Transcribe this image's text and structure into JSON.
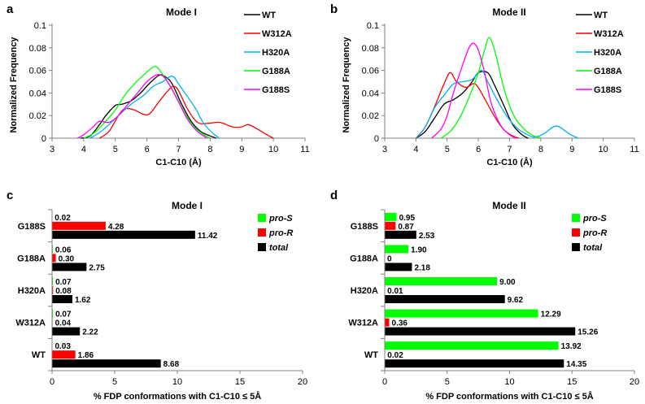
{
  "chart_data": [
    {
      "panel": "a",
      "type": "line",
      "title": "Mode I",
      "xlabel": "C1-C10 (Å)",
      "ylabel": "Normalized Frequency",
      "xlim": [
        3,
        11
      ],
      "ylim": [
        0,
        0.1
      ],
      "xticks": [
        3,
        4,
        5,
        6,
        7,
        8,
        9,
        10,
        11
      ],
      "yticks": [
        0,
        0.02,
        0.04,
        0.06,
        0.08,
        0.1
      ],
      "ytick_labels": [
        "0",
        "0.02",
        "0.04",
        "0.06",
        "0.08",
        "0.1"
      ],
      "series": [
        {
          "name": "WT",
          "color": "#000000",
          "points": [
            [
              3.9,
              0
            ],
            [
              4.2,
              0.002
            ],
            [
              4.5,
              0.012
            ],
            [
              4.7,
              0.02
            ],
            [
              5.0,
              0.029
            ],
            [
              5.2,
              0.03
            ],
            [
              5.5,
              0.033
            ],
            [
              5.8,
              0.04
            ],
            [
              6.1,
              0.049
            ],
            [
              6.4,
              0.056
            ],
            [
              6.6,
              0.054
            ],
            [
              6.8,
              0.048
            ],
            [
              7.1,
              0.03
            ],
            [
              7.4,
              0.015
            ],
            [
              7.7,
              0.006
            ],
            [
              8.0,
              0.002
            ],
            [
              8.2,
              0
            ]
          ]
        },
        {
          "name": "W312A",
          "color": "#ff0000",
          "points": [
            [
              4.5,
              0
            ],
            [
              4.8,
              0.006
            ],
            [
              5.1,
              0.02
            ],
            [
              5.3,
              0.026
            ],
            [
              5.6,
              0.025
            ],
            [
              5.9,
              0.021
            ],
            [
              6.1,
              0.022
            ],
            [
              6.4,
              0.033
            ],
            [
              6.7,
              0.043
            ],
            [
              6.85,
              0.046
            ],
            [
              7.0,
              0.042
            ],
            [
              7.3,
              0.025
            ],
            [
              7.6,
              0.014
            ],
            [
              7.9,
              0.013
            ],
            [
              8.3,
              0.014
            ],
            [
              8.7,
              0.01
            ],
            [
              9.0,
              0.01
            ],
            [
              9.2,
              0.012
            ],
            [
              9.5,
              0.008
            ],
            [
              9.8,
              0.003
            ],
            [
              10.0,
              0
            ]
          ]
        },
        {
          "name": "H320A",
          "color": "#00b0f0",
          "points": [
            [
              4.2,
              0
            ],
            [
              4.5,
              0.005
            ],
            [
              4.8,
              0.012
            ],
            [
              5.1,
              0.02
            ],
            [
              5.5,
              0.03
            ],
            [
              5.9,
              0.038
            ],
            [
              6.2,
              0.046
            ],
            [
              6.5,
              0.05
            ],
            [
              6.8,
              0.055
            ],
            [
              7.0,
              0.048
            ],
            [
              7.2,
              0.04
            ],
            [
              7.5,
              0.028
            ],
            [
              7.8,
              0.013
            ],
            [
              8.1,
              0.004
            ],
            [
              8.3,
              0
            ]
          ]
        },
        {
          "name": "G188A",
          "color": "#00ff00",
          "points": [
            [
              4.0,
              0
            ],
            [
              4.3,
              0.004
            ],
            [
              4.6,
              0.012
            ],
            [
              5.0,
              0.025
            ],
            [
              5.3,
              0.038
            ],
            [
              5.6,
              0.048
            ],
            [
              5.9,
              0.056
            ],
            [
              6.2,
              0.063
            ],
            [
              6.35,
              0.062
            ],
            [
              6.6,
              0.052
            ],
            [
              6.9,
              0.038
            ],
            [
              7.2,
              0.022
            ],
            [
              7.5,
              0.01
            ],
            [
              7.8,
              0.003
            ],
            [
              8.0,
              0
            ]
          ]
        },
        {
          "name": "G188S",
          "color": "#ff00ff",
          "points": [
            [
              3.8,
              0
            ],
            [
              4.0,
              0.003
            ],
            [
              4.3,
              0.01
            ],
            [
              4.5,
              0.015
            ],
            [
              4.8,
              0.014
            ],
            [
              5.1,
              0.02
            ],
            [
              5.4,
              0.03
            ],
            [
              5.7,
              0.04
            ],
            [
              6.0,
              0.05
            ],
            [
              6.3,
              0.056
            ],
            [
              6.5,
              0.055
            ],
            [
              6.7,
              0.048
            ],
            [
              7.0,
              0.032
            ],
            [
              7.3,
              0.016
            ],
            [
              7.6,
              0.006
            ],
            [
              7.9,
              0
            ]
          ]
        }
      ]
    },
    {
      "panel": "b",
      "type": "line",
      "title": "Mode II",
      "xlabel": "C1-C10 (Å)",
      "ylabel": "Normalized Frequency",
      "xlim": [
        3,
        11
      ],
      "ylim": [
        0,
        0.1
      ],
      "xticks": [
        3,
        4,
        5,
        6,
        7,
        8,
        9,
        10,
        11
      ],
      "yticks": [
        0,
        0.02,
        0.04,
        0.06,
        0.08,
        0.1
      ],
      "ytick_labels": [
        "0",
        "0.02",
        "0.04",
        "0.06",
        "0.08",
        "0.1"
      ],
      "series": [
        {
          "name": "WT",
          "color": "#000000",
          "points": [
            [
              4.0,
              0
            ],
            [
              4.3,
              0.006
            ],
            [
              4.6,
              0.018
            ],
            [
              4.9,
              0.03
            ],
            [
              5.2,
              0.034
            ],
            [
              5.5,
              0.04
            ],
            [
              5.8,
              0.05
            ],
            [
              6.0,
              0.058
            ],
            [
              6.3,
              0.058
            ],
            [
              6.5,
              0.048
            ],
            [
              6.8,
              0.03
            ],
            [
              7.1,
              0.012
            ],
            [
              7.4,
              0.003
            ],
            [
              7.6,
              0
            ]
          ]
        },
        {
          "name": "W312A",
          "color": "#ff0000",
          "points": [
            [
              4.0,
              0
            ],
            [
              4.3,
              0.01
            ],
            [
              4.6,
              0.028
            ],
            [
              4.9,
              0.048
            ],
            [
              5.1,
              0.058
            ],
            [
              5.3,
              0.05
            ],
            [
              5.6,
              0.045
            ],
            [
              5.9,
              0.048
            ],
            [
              6.2,
              0.035
            ],
            [
              6.5,
              0.02
            ],
            [
              6.8,
              0.008
            ],
            [
              7.1,
              0.002
            ],
            [
              7.3,
              0
            ]
          ]
        },
        {
          "name": "H320A",
          "color": "#00b0f0",
          "points": [
            [
              4.0,
              0
            ],
            [
              4.3,
              0.01
            ],
            [
              4.6,
              0.027
            ],
            [
              4.9,
              0.038
            ],
            [
              5.2,
              0.048
            ],
            [
              5.5,
              0.05
            ],
            [
              5.8,
              0.052
            ],
            [
              6.1,
              0.06
            ],
            [
              6.3,
              0.05
            ],
            [
              6.6,
              0.034
            ],
            [
              6.9,
              0.02
            ],
            [
              7.2,
              0.01
            ],
            [
              7.5,
              0.004
            ],
            [
              7.8,
              0.001
            ],
            [
              8.1,
              0.004
            ],
            [
              8.4,
              0.01
            ],
            [
              8.6,
              0.01
            ],
            [
              8.9,
              0.004
            ],
            [
              9.2,
              0
            ]
          ]
        },
        {
          "name": "G188A",
          "color": "#00ff00",
          "points": [
            [
              4.8,
              0
            ],
            [
              5.1,
              0.006
            ],
            [
              5.4,
              0.018
            ],
            [
              5.7,
              0.036
            ],
            [
              6.0,
              0.058
            ],
            [
              6.2,
              0.078
            ],
            [
              6.35,
              0.089
            ],
            [
              6.55,
              0.075
            ],
            [
              6.8,
              0.046
            ],
            [
              7.1,
              0.022
            ],
            [
              7.4,
              0.01
            ],
            [
              7.7,
              0.003
            ],
            [
              8.0,
              0
            ]
          ]
        },
        {
          "name": "G188S",
          "color": "#ff00ff",
          "points": [
            [
              4.5,
              0
            ],
            [
              4.8,
              0.008
            ],
            [
              5.0,
              0.02
            ],
            [
              5.2,
              0.04
            ],
            [
              5.5,
              0.065
            ],
            [
              5.7,
              0.08
            ],
            [
              5.85,
              0.084
            ],
            [
              6.0,
              0.078
            ],
            [
              6.2,
              0.058
            ],
            [
              6.4,
              0.032
            ],
            [
              6.7,
              0.012
            ],
            [
              7.0,
              0.003
            ],
            [
              7.2,
              0
            ]
          ]
        }
      ]
    },
    {
      "panel": "c",
      "type": "bar",
      "orientation": "horizontal",
      "title": "Mode I",
      "xlabel": "% FDP conformations with C1-C10 ≤ 5Å",
      "ylabel": "",
      "xlim": [
        0,
        20
      ],
      "xticks": [
        0,
        5,
        10,
        15,
        20
      ],
      "categories": [
        "G188S",
        "G188A",
        "H320A",
        "W312A",
        "WT"
      ],
      "series": [
        {
          "name": "pro-S",
          "color": "#00ff00",
          "values": [
            0.02,
            0.06,
            0.07,
            0.07,
            0.03
          ],
          "labels": [
            "0.02",
            "0.06",
            "0.07",
            "0.07",
            "0.03"
          ]
        },
        {
          "name": "pro-R",
          "color": "#ff0000",
          "values": [
            4.28,
            0.3,
            0.08,
            0.04,
            1.86
          ],
          "labels": [
            "4.28",
            "0.30",
            "0.08",
            "0.04",
            "1.86"
          ]
        },
        {
          "name": "total",
          "color": "#000000",
          "values": [
            11.42,
            2.75,
            1.62,
            2.22,
            8.68
          ],
          "labels": [
            "11.42",
            "2.75",
            "1.62",
            "2.22",
            "8.68"
          ]
        }
      ]
    },
    {
      "panel": "d",
      "type": "bar",
      "orientation": "horizontal",
      "title": "Mode II",
      "xlabel": "% FDP conformations with C1-C10 ≤ 5Å",
      "ylabel": "",
      "xlim": [
        0,
        20
      ],
      "xticks": [
        0,
        5,
        10,
        15,
        20
      ],
      "categories": [
        "G188S",
        "G188A",
        "H320A",
        "W312A",
        "WT"
      ],
      "series": [
        {
          "name": "pro-S",
          "color": "#00ff00",
          "values": [
            0.95,
            1.9,
            9.0,
            12.29,
            13.92
          ],
          "labels": [
            "0.95",
            "1.90",
            "9.00",
            "12.29",
            "13.92"
          ]
        },
        {
          "name": "pro-R",
          "color": "#ff0000",
          "values": [
            0.87,
            0,
            0.01,
            0.36,
            0.02
          ],
          "labels": [
            "0.87",
            "0",
            "0.01",
            "0.36",
            "0.02"
          ]
        },
        {
          "name": "total",
          "color": "#000000",
          "values": [
            2.53,
            2.18,
            9.62,
            15.26,
            14.35
          ],
          "labels": [
            "2.53",
            "2.18",
            "9.62",
            "15.26",
            "14.35"
          ]
        }
      ]
    }
  ]
}
